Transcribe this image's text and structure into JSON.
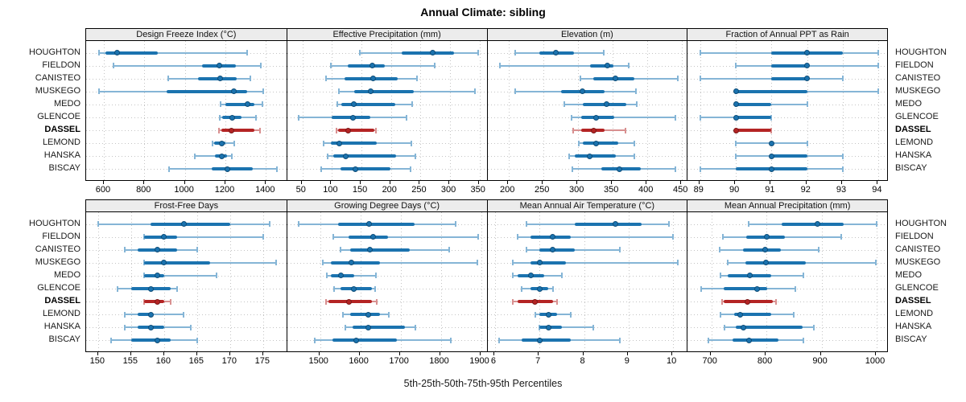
{
  "header": {
    "title": "Annual Climate: sibling"
  },
  "footer": {
    "caption": "5th-25th-50th-75th-95th Percentiles"
  },
  "sites": [
    "HOUGHTON",
    "FIELDON",
    "CANISTEO",
    "MUSKEGO",
    "MEDO",
    "GLENCOE",
    "DASSEL",
    "LEMOND",
    "HANSKA",
    "BISCAY"
  ],
  "highlight_site": "DASSEL",
  "colors": {
    "series": "#1b73af",
    "series_light": "#85b5d6",
    "series_edge": "#0f4d77",
    "highlight": "#b42424",
    "highlight_light": "#d89090",
    "highlight_edge": "#7a1a1a",
    "strip_bg": "#ececec",
    "grid_dot": "#c4c4c4",
    "border": "#000000"
  },
  "chart_data": {
    "type": "dotplot-percentile-intervals",
    "percentile_labels": [
      5,
      25,
      50,
      75,
      95
    ],
    "layout": {
      "rows": 2,
      "cols": 4,
      "legend": "none",
      "grid": "dotted"
    },
    "panels": [
      {
        "title": "Design Freeze Index (°C)",
        "row": 0,
        "col": 0,
        "axis_min": 513,
        "axis_max": 1497,
        "ticks": [
          600,
          800,
          1000,
          1200,
          1400
        ],
        "series": [
          {
            "site": "HOUGHTON",
            "p": [
              575,
              607,
              665,
              865,
              1308
            ]
          },
          {
            "site": "FIELDON",
            "p": [
              650,
              1085,
              1170,
              1250,
              1375
            ]
          },
          {
            "site": "CANISTEO",
            "p": [
              920,
              1065,
              1175,
              1255,
              1325
            ]
          },
          {
            "site": "MUSKEGO",
            "p": [
              577,
              912,
              1240,
              1308,
              1388
            ]
          },
          {
            "site": "MEDO",
            "p": [
              1178,
              1201,
              1308,
              1343,
              1384
            ]
          },
          {
            "site": "GLENCOE",
            "p": [
              1171,
              1183,
              1234,
              1281,
              1351
            ]
          },
          {
            "site": "DASSEL",
            "p": [
              1168,
              1180,
              1228,
              1345,
              1372
            ]
          },
          {
            "site": "LEMOND",
            "p": [
              1136,
              1145,
              1183,
              1200,
              1244
            ]
          },
          {
            "site": "HANSKA",
            "p": [
              1049,
              1147,
              1183,
              1210,
              1230
            ]
          },
          {
            "site": "BISCAY",
            "p": [
              922,
              1134,
              1210,
              1335,
              1453
            ]
          }
        ]
      },
      {
        "title": "Effective Precipitation (mm)",
        "row": 0,
        "col": 1,
        "axis_min": 24,
        "axis_max": 362,
        "ticks": [
          50,
          100,
          150,
          200,
          250,
          300,
          350
        ],
        "series": [
          {
            "site": "HOUGHTON",
            "p": [
              147,
              218,
              270,
              307,
              347
            ]
          },
          {
            "site": "FIELDON",
            "p": [
              98,
              126,
              168,
              190,
              274
            ]
          },
          {
            "site": "CANISTEO",
            "p": [
              90,
              121,
              170,
              211,
              244
            ]
          },
          {
            "site": "MUSKEGO",
            "p": [
              111,
              137,
              166,
              239,
              342
            ]
          },
          {
            "site": "MEDO",
            "p": [
              109,
              116,
              137,
              207,
              236
            ]
          },
          {
            "site": "GLENCOE",
            "p": [
              43,
              100,
              136,
              165,
              226
            ]
          },
          {
            "site": "DASSEL",
            "p": [
              108,
              110,
              128,
              172,
              175
            ]
          },
          {
            "site": "LEMOND",
            "p": [
              86,
              98,
              112,
              176,
              234
            ]
          },
          {
            "site": "HANSKA",
            "p": [
              92,
              102,
              123,
              209,
              241
            ]
          },
          {
            "site": "BISCAY",
            "p": [
              81,
              114,
              140,
              199,
              233
            ]
          }
        ]
      },
      {
        "title": "Elevation (m)",
        "row": 0,
        "col": 2,
        "axis_min": 169,
        "axis_max": 457,
        "ticks": [
          200,
          250,
          300,
          350,
          400,
          450
        ],
        "series": [
          {
            "site": "HOUGHTON",
            "p": [
              209,
              244,
              268,
              294,
              337
            ]
          },
          {
            "site": "FIELDON",
            "p": [
              187,
              317,
              342,
              351,
              373
            ]
          },
          {
            "site": "CANISTEO",
            "p": [
              303,
              322,
              354,
              381,
              444
            ]
          },
          {
            "site": "MUSKEGO",
            "p": [
              209,
              275,
              306,
              338,
              383
            ]
          },
          {
            "site": "MEDO",
            "p": [
              280,
              307,
              341,
              370,
              385
            ]
          },
          {
            "site": "GLENCOE",
            "p": [
              290,
              305,
              326,
              352,
              440
            ]
          },
          {
            "site": "DASSEL",
            "p": [
              293,
              305,
              322,
              338,
              368
            ]
          },
          {
            "site": "LEMOND",
            "p": [
              301,
              307,
              326,
              358,
              381
            ]
          },
          {
            "site": "HANSKA",
            "p": [
              287,
              295,
              317,
              354,
              381
            ]
          },
          {
            "site": "BISCAY",
            "p": [
              292,
              334,
              360,
              391,
              441
            ]
          }
        ]
      },
      {
        "title": "Fraction of Annual PPT as Rain",
        "row": 0,
        "col": 3,
        "axis_min": 88.65,
        "axis_max": 94.24,
        "ticks": [
          89,
          90,
          91,
          92,
          93,
          94
        ],
        "series": [
          {
            "site": "HOUGHTON",
            "p": [
              89,
              91,
              92,
              93,
              94
            ]
          },
          {
            "site": "FIELDON",
            "p": [
              90,
              91,
              92,
              92,
              94
            ]
          },
          {
            "site": "CANISTEO",
            "p": [
              89,
              91,
              92,
              92,
              93
            ]
          },
          {
            "site": "MUSKEGO",
            "p": [
              90,
              90,
              90,
              92,
              94
            ]
          },
          {
            "site": "MEDO",
            "p": [
              90,
              90,
              90,
              91,
              92
            ]
          },
          {
            "site": "GLENCOE",
            "p": [
              89,
              90,
              90,
              91,
              91
            ]
          },
          {
            "site": "DASSEL",
            "p": [
              90,
              90,
              90,
              91,
              91
            ]
          },
          {
            "site": "LEMOND",
            "p": [
              90,
              91,
              91,
              91,
              92
            ]
          },
          {
            "site": "HANSKA",
            "p": [
              90,
              91,
              91,
              92,
              93
            ]
          },
          {
            "site": "BISCAY",
            "p": [
              89,
              90,
              91,
              92,
              93
            ]
          }
        ]
      },
      {
        "title": "Frost-Free Days",
        "row": 1,
        "col": 0,
        "axis_min": 148.2,
        "axis_max": 178.4,
        "ticks": [
          150,
          155,
          160,
          165,
          170,
          175
        ],
        "series": [
          {
            "site": "HOUGHTON",
            "p": [
              150,
              158,
              163,
              170,
              176
            ]
          },
          {
            "site": "FIELDON",
            "p": [
              157,
              157,
              160,
              162,
              175
            ]
          },
          {
            "site": "CANISTEO",
            "p": [
              154,
              156,
              159,
              162,
              165
            ]
          },
          {
            "site": "MUSKEGO",
            "p": [
              157,
              157,
              160,
              167,
              177
            ]
          },
          {
            "site": "MEDO",
            "p": [
              157,
              157,
              159,
              160,
              168
            ]
          },
          {
            "site": "GLENCOE",
            "p": [
              153,
              155,
              158,
              161,
              162
            ]
          },
          {
            "site": "DASSEL",
            "p": [
              157,
              157,
              159,
              160,
              161
            ]
          },
          {
            "site": "LEMOND",
            "p": [
              154,
              156,
              158,
              158,
              163
            ]
          },
          {
            "site": "HANSKA",
            "p": [
              154,
              156,
              158,
              160,
              164
            ]
          },
          {
            "site": "BISCAY",
            "p": [
              152,
              155,
              159,
              161,
              165
            ]
          }
        ]
      },
      {
        "title": "Growing Degree Days (°C)",
        "row": 1,
        "col": 1,
        "axis_min": 1418,
        "axis_max": 1914,
        "ticks": [
          1500,
          1600,
          1700,
          1800,
          1900
        ],
        "series": [
          {
            "site": "HOUGHTON",
            "p": [
              1447,
              1544,
              1622,
              1734,
              1837
            ]
          },
          {
            "site": "FIELDON",
            "p": [
              1533,
              1571,
              1632,
              1669,
              1892
            ]
          },
          {
            "site": "CANISTEO",
            "p": [
              1550,
              1574,
              1624,
              1723,
              1820
            ]
          },
          {
            "site": "MUSKEGO",
            "p": [
              1506,
              1527,
              1577,
              1649,
              1890
            ]
          },
          {
            "site": "MEDO",
            "p": [
              1516,
              1527,
              1552,
              1584,
              1639
            ]
          },
          {
            "site": "GLENCOE",
            "p": [
              1535,
              1550,
              1584,
              1629,
              1637
            ]
          },
          {
            "site": "DASSEL",
            "p": [
              1515,
              1520,
              1571,
              1629,
              1640
            ]
          },
          {
            "site": "LEMOND",
            "p": [
              1557,
              1574,
              1620,
              1649,
              1671
            ]
          },
          {
            "site": "HANSKA",
            "p": [
              1562,
              1581,
              1620,
              1710,
              1736
            ]
          },
          {
            "site": "BISCAY",
            "p": [
              1486,
              1530,
              1590,
              1690,
              1824
            ]
          }
        ]
      },
      {
        "title": "Mean Annual Air Temperature (°C)",
        "row": 1,
        "col": 2,
        "axis_min": 5.83,
        "axis_max": 10.31,
        "ticks": [
          6,
          7,
          8,
          9,
          10
        ],
        "series": [
          {
            "site": "HOUGHTON",
            "p": [
              6.7,
              7.8,
              8.7,
              9.3,
              9.9
            ]
          },
          {
            "site": "FIELDON",
            "p": [
              6.5,
              6.8,
              7.3,
              7.7,
              10.0
            ]
          },
          {
            "site": "CANISTEO",
            "p": [
              6.7,
              7.0,
              7.3,
              7.8,
              8.8
            ]
          },
          {
            "site": "MUSKEGO",
            "p": [
              6.4,
              6.8,
              7.0,
              7.6,
              10.1
            ]
          },
          {
            "site": "MEDO",
            "p": [
              6.4,
              6.5,
              6.8,
              7.1,
              7.5
            ]
          },
          {
            "site": "GLENCOE",
            "p": [
              6.6,
              6.8,
              7.0,
              7.2,
              7.3
            ]
          },
          {
            "site": "DASSEL",
            "p": [
              6.4,
              6.5,
              6.9,
              7.3,
              7.4
            ]
          },
          {
            "site": "LEMOND",
            "p": [
              6.9,
              7.0,
              7.2,
              7.4,
              7.7
            ]
          },
          {
            "site": "HANSKA",
            "p": [
              7.0,
              7.0,
              7.2,
              7.5,
              8.2
            ]
          },
          {
            "site": "BISCAY",
            "p": [
              6.1,
              6.6,
              7.0,
              7.7,
              8.8
            ]
          }
        ]
      },
      {
        "title": "Mean Annual Precipitation (mm)",
        "row": 1,
        "col": 3,
        "axis_min": 657,
        "axis_max": 1019,
        "ticks": [
          700,
          800,
          900,
          1000
        ],
        "series": [
          {
            "site": "HOUGHTON",
            "p": [
              768,
              827,
              892,
              940,
              1000
            ]
          },
          {
            "site": "FIELDON",
            "p": [
              721,
              763,
              801,
              833,
              936
            ]
          },
          {
            "site": "CANISTEO",
            "p": [
              715,
              757,
              798,
              826,
              895
            ]
          },
          {
            "site": "MUSKEGO",
            "p": [
              729,
              762,
              799,
              871,
              999
            ]
          },
          {
            "site": "MEDO",
            "p": [
              716,
              729,
              770,
              808,
              867
            ]
          },
          {
            "site": "GLENCOE",
            "p": [
              681,
              722,
              783,
              801,
              853
            ]
          },
          {
            "site": "DASSEL",
            "p": [
              719,
              722,
              765,
              812,
              817
            ]
          },
          {
            "site": "LEMOND",
            "p": [
              716,
              742,
              752,
              808,
              849
            ]
          },
          {
            "site": "HANSKA",
            "p": [
              724,
              744,
              758,
              865,
              886
            ]
          },
          {
            "site": "BISCAY",
            "p": [
              694,
              738,
              769,
              822,
              867
            ]
          }
        ]
      }
    ]
  }
}
